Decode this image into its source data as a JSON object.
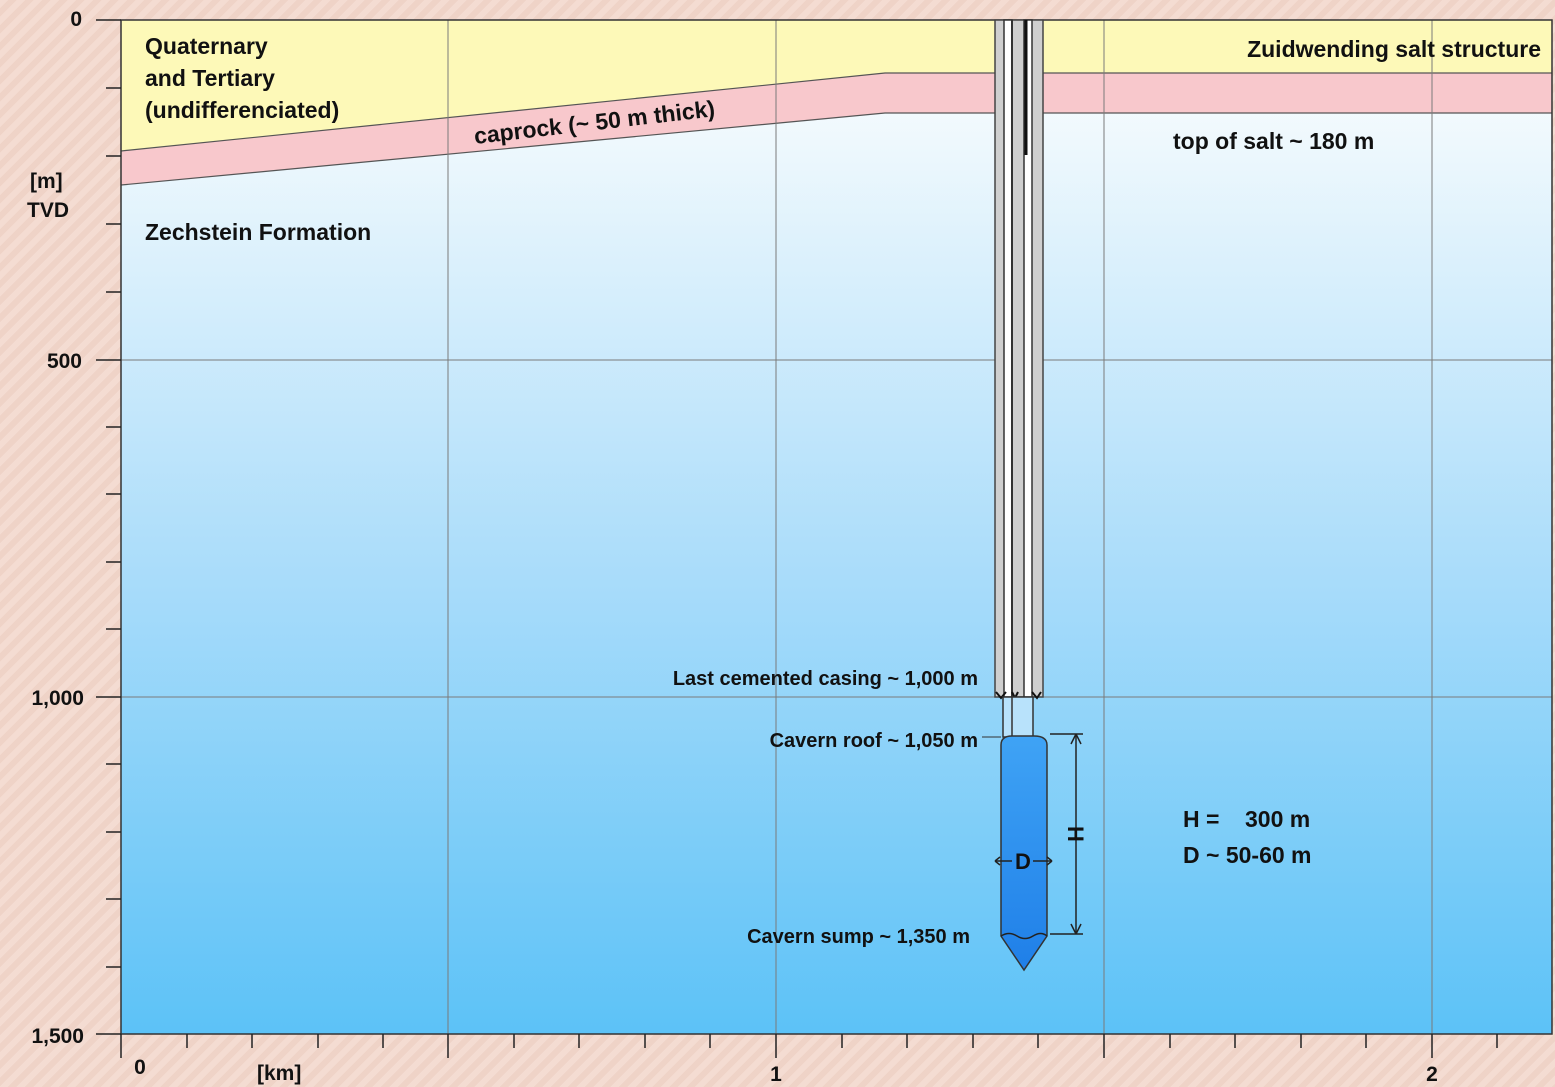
{
  "diagram": {
    "y_axis": {
      "unit_label": "[m]",
      "unit_label_2": "TVD",
      "ticks": [
        "0",
        "500",
        "1,000",
        "1,500"
      ]
    },
    "x_axis": {
      "unit_label": "[km]",
      "ticks": [
        "0",
        "1",
        "2"
      ]
    },
    "layers": {
      "quaternary_line1": "Quaternary",
      "quaternary_line2": "and Tertiary",
      "quaternary_line3": "(undifferenciated)",
      "caprock": "caprock (~ 50 m thick)",
      "zechstein": "Zechstein Formation",
      "salt_structure": "Zuidwending salt structure",
      "top_of_salt": "top of salt ~ 180 m"
    },
    "well": {
      "last_casing": "Last cemented casing ~ 1,000 m",
      "cavern_roof": "Cavern roof ~ 1,050 m",
      "cavern_sump": "Cavern sump ~ 1,350 m",
      "h_symbol": "H",
      "d_symbol": "D"
    },
    "dimensions": {
      "h_line": "H =    300 m",
      "d_line": "D ~ 50-60 m"
    },
    "colors": {
      "quaternary": "#fdf9b8",
      "caprock": "#f8c8cc",
      "salt_top": "#ffffff",
      "salt_bottom": "#5cc2f7",
      "cavern": "#2a8cf0",
      "casing": "#c8c8c8"
    }
  }
}
